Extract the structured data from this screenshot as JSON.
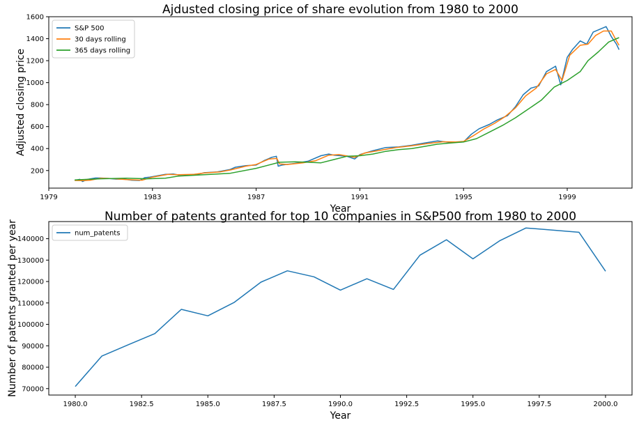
{
  "chart_data": [
    {
      "type": "line",
      "title": "Ajdusted closing price of share evolution from 1980 to 2000",
      "xlabel": "Year",
      "ylabel": "Adjusted closing price",
      "xlim": [
        1979.0,
        2001.5
      ],
      "ylim": [
        40,
        1600
      ],
      "x_ticks": [
        1979,
        1983,
        1987,
        1991,
        1995,
        1999
      ],
      "x_tick_labels": [
        "1979",
        "1983",
        "1987",
        "1991",
        "1995",
        "1999"
      ],
      "y_ticks": [
        200,
        400,
        600,
        800,
        1000,
        1200,
        1400,
        1600
      ],
      "y_tick_labels": [
        "200",
        "400",
        "600",
        "800",
        "1000",
        "1200",
        "1400",
        "1600"
      ],
      "grid": false,
      "legend_position": "top-left",
      "series": [
        {
          "name": "S&P 500",
          "color": "#1f77b4",
          "x": [
            1980.0,
            1980.2,
            1980.3,
            1980.5,
            1980.8,
            1981.0,
            1981.3,
            1981.6,
            1981.9,
            1982.2,
            1982.5,
            1982.7,
            1982.9,
            1983.2,
            1983.5,
            1983.8,
            1984.0,
            1984.4,
            1984.8,
            1985.0,
            1985.5,
            1986.0,
            1986.2,
            1986.6,
            1987.0,
            1987.3,
            1987.6,
            1987.78,
            1987.85,
            1988.0,
            1988.5,
            1989.0,
            1989.5,
            1989.8,
            1990.0,
            1990.5,
            1990.8,
            1991.0,
            1991.5,
            1992.0,
            1992.5,
            1993.0,
            1993.5,
            1994.0,
            1994.5,
            1995.0,
            1995.3,
            1995.6,
            1996.0,
            1996.3,
            1996.7,
            1997.0,
            1997.3,
            1997.6,
            1997.9,
            1998.2,
            1998.55,
            1998.75,
            1999.0,
            1999.2,
            1999.5,
            1999.75,
            2000.0,
            2000.2,
            2000.5,
            2000.7,
            2000.9,
            2001.0
          ],
          "y": [
            110,
            120,
            100,
            120,
            132,
            132,
            128,
            122,
            122,
            112,
            110,
            135,
            140,
            152,
            165,
            168,
            160,
            162,
            168,
            180,
            188,
            210,
            230,
            245,
            250,
            290,
            320,
            330,
            240,
            250,
            265,
            285,
            335,
            350,
            340,
            330,
            305,
            345,
            380,
            410,
            415,
            430,
            450,
            470,
            455,
            460,
            530,
            580,
            620,
            660,
            700,
            780,
            890,
            950,
            970,
            1100,
            1150,
            980,
            1230,
            1300,
            1380,
            1350,
            1460,
            1480,
            1510,
            1420,
            1350,
            1300
          ]
        },
        {
          "name": "30 days rolling",
          "color": "#ff7f0e",
          "x": [
            1980.0,
            1980.3,
            1980.6,
            1981.0,
            1981.5,
            1982.0,
            1982.6,
            1983.0,
            1983.6,
            1984.0,
            1984.6,
            1985.0,
            1985.6,
            1986.0,
            1986.6,
            1987.0,
            1987.5,
            1987.8,
            1987.9,
            1988.2,
            1988.8,
            1989.3,
            1989.8,
            1990.2,
            1990.8,
            1991.2,
            1991.8,
            1992.4,
            1993.0,
            1993.6,
            1994.2,
            1994.7,
            1995.0,
            1995.4,
            1995.8,
            1996.2,
            1996.6,
            1997.0,
            1997.4,
            1997.8,
            1998.2,
            1998.55,
            1998.8,
            1999.1,
            1999.5,
            1999.8,
            2000.1,
            2000.4,
            2000.7,
            2000.9,
            2001.0
          ],
          "y": [
            110,
            108,
            112,
            130,
            126,
            118,
            112,
            140,
            165,
            162,
            165,
            178,
            188,
            205,
            240,
            255,
            305,
            310,
            260,
            255,
            270,
            290,
            340,
            345,
            320,
            360,
            385,
            410,
            425,
            445,
            462,
            460,
            465,
            520,
            580,
            630,
            690,
            770,
            880,
            950,
            1080,
            1120,
            1020,
            1250,
            1340,
            1350,
            1430,
            1470,
            1470,
            1380,
            1340
          ]
        },
        {
          "name": "365 days rolling",
          "color": "#2ca02c",
          "x": [
            1980.0,
            1981.0,
            1982.0,
            1982.8,
            1983.5,
            1984.0,
            1985.0,
            1986.0,
            1987.0,
            1987.9,
            1988.5,
            1989.0,
            1989.5,
            1990.0,
            1990.5,
            1991.0,
            1991.5,
            1992.0,
            1992.5,
            1993.0,
            1993.5,
            1994.0,
            1994.5,
            1995.0,
            1995.5,
            1996.0,
            1996.5,
            1997.0,
            1997.5,
            1998.0,
            1998.5,
            1999.0,
            1999.5,
            1999.8,
            2000.2,
            2000.6,
            2000.9,
            2001.0
          ],
          "y": [
            115,
            125,
            130,
            125,
            130,
            150,
            162,
            175,
            220,
            275,
            280,
            275,
            270,
            300,
            330,
            335,
            350,
            375,
            390,
            400,
            420,
            440,
            450,
            460,
            490,
            550,
            610,
            680,
            760,
            840,
            960,
            1020,
            1100,
            1200,
            1280,
            1370,
            1400,
            1410
          ]
        }
      ]
    },
    {
      "type": "line",
      "title": "Number of patents granted for top 10 companies in S&P500 from 1980 to 2000",
      "xlabel": "Year",
      "ylabel": "Number of patents granted per year",
      "xlim": [
        1979.0,
        2001.0
      ],
      "ylim": [
        67000,
        148000
      ],
      "x_ticks": [
        1980.0,
        1982.5,
        1985.0,
        1987.5,
        1990.0,
        1992.5,
        1995.0,
        1997.5,
        2000.0
      ],
      "x_tick_labels": [
        "1980.0",
        "1982.5",
        "1985.0",
        "1987.5",
        "1990.0",
        "1992.5",
        "1995.0",
        "1997.5",
        "2000.0"
      ],
      "y_ticks": [
        70000,
        80000,
        90000,
        100000,
        110000,
        120000,
        130000,
        140000
      ],
      "y_tick_labels": [
        "70000",
        "80000",
        "90000",
        "100000",
        "110000",
        "120000",
        "130000",
        "140000"
      ],
      "grid": false,
      "legend_position": "top-left",
      "series": [
        {
          "name": "num_patents",
          "color": "#1f77b4",
          "x": [
            1980,
            1981,
            1982,
            1983,
            1984,
            1985,
            1986,
            1987,
            1988,
            1989,
            1990,
            1991,
            1992,
            1993,
            1994,
            1995,
            1996,
            1997,
            1998,
            1999,
            2000
          ],
          "y": [
            71000,
            85200,
            90500,
            95700,
            107000,
            104000,
            110300,
            119700,
            125000,
            122200,
            116000,
            121300,
            116300,
            132300,
            139500,
            130600,
            139000,
            145000,
            144000,
            143000,
            124800
          ]
        }
      ]
    }
  ]
}
